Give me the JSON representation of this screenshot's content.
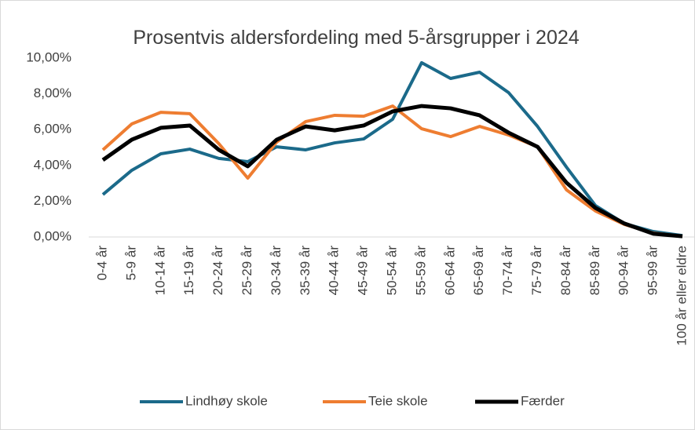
{
  "chart_data": {
    "type": "line",
    "title": "Prosentvis aldersfordeling med 5-årsgrupper i 2024",
    "categories": [
      "0-4 år",
      "5-9 år",
      "10-14 år",
      "15-19 år",
      "20-24 år",
      "25-29 år",
      "30-34 år",
      "35-39 år",
      "40-44 år",
      "45-49 år",
      "50-54 år",
      "55-59 år",
      "60-64 år",
      "65-69 år",
      "70-74 år",
      "75-79 år",
      "80-84 år",
      "85-89 år",
      "90-94 år",
      "95-99 år",
      "100 år eller eldre"
    ],
    "series": [
      {
        "name": "Lindhøy skole",
        "color": "#1b6a8a",
        "values": [
          2.37,
          3.73,
          4.65,
          4.91,
          4.39,
          4.21,
          5.04,
          4.87,
          5.26,
          5.48,
          6.58,
          9.74,
          8.86,
          9.21,
          8.07,
          6.18,
          3.9,
          1.75,
          0.75,
          0.3,
          0.08
        ]
      },
      {
        "name": "Teie skole",
        "color": "#ee7d31",
        "values": [
          4.87,
          6.32,
          6.97,
          6.89,
          5.22,
          3.29,
          5.31,
          6.45,
          6.8,
          6.75,
          7.32,
          6.05,
          5.61,
          6.18,
          5.7,
          5.04,
          2.63,
          1.45,
          0.7,
          0.22,
          0.04
        ]
      },
      {
        "name": "Færder",
        "color": "#000000",
        "values": [
          4.3,
          5.44,
          6.1,
          6.23,
          4.87,
          3.95,
          5.44,
          6.18,
          5.96,
          6.23,
          7.02,
          7.32,
          7.19,
          6.8,
          5.83,
          5.04,
          3.03,
          1.62,
          0.75,
          0.18,
          0.04
        ]
      }
    ],
    "ylim": [
      0,
      10
    ],
    "yticks": [
      {
        "value": 0,
        "label": "0,00%"
      },
      {
        "value": 2,
        "label": "2,00%"
      },
      {
        "value": 4,
        "label": "4,00%"
      },
      {
        "value": 6,
        "label": "6,00%"
      },
      {
        "value": 8,
        "label": "8,00%"
      },
      {
        "value": 10,
        "label": "10,00%"
      }
    ],
    "legend": "bottom"
  }
}
